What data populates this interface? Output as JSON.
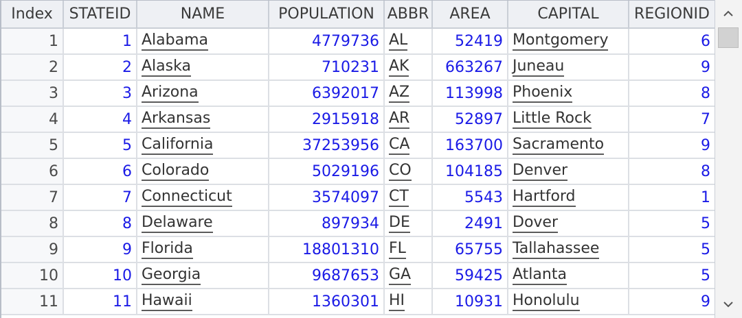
{
  "table": {
    "columns": [
      "Index",
      "STATEID",
      "NAME",
      "POPULATION",
      "ABBR",
      "AREA",
      "CAPITAL",
      "REGIONID"
    ],
    "rows": [
      [
        "1",
        "1",
        "Alabama",
        "4779736",
        "AL",
        "52419",
        "Montgomery",
        "6"
      ],
      [
        "2",
        "2",
        "Alaska",
        "710231",
        "AK",
        "663267",
        "Juneau",
        "9"
      ],
      [
        "3",
        "3",
        "Arizona",
        "6392017",
        "AZ",
        "113998",
        "Phoenix",
        "8"
      ],
      [
        "4",
        "4",
        "Arkansas",
        "2915918",
        "AR",
        "52897",
        "Little Rock",
        "7"
      ],
      [
        "5",
        "5",
        "California",
        "37253956",
        "CA",
        "163700",
        "Sacramento",
        "9"
      ],
      [
        "6",
        "6",
        "Colorado",
        "5029196",
        "CO",
        "104185",
        "Denver",
        "8"
      ],
      [
        "7",
        "7",
        "Connecticut",
        "3574097",
        "CT",
        "5543",
        "Hartford",
        "1"
      ],
      [
        "8",
        "8",
        "Delaware",
        "897934",
        "DE",
        "2491",
        "Dover",
        "5"
      ],
      [
        "9",
        "9",
        "Florida",
        "18801310",
        "FL",
        "65755",
        "Tallahassee",
        "5"
      ],
      [
        "10",
        "10",
        "Georgia",
        "9687653",
        "GA",
        "59425",
        "Atlanta",
        "5"
      ],
      [
        "11",
        "11",
        "Hawaii",
        "1360301",
        "HI",
        "10931",
        "Honolulu",
        "9"
      ]
    ]
  },
  "scrollbar": {
    "up_icon": "chevron-up-icon",
    "down_icon": "chevron-down-icon",
    "position_fraction": 0.0
  },
  "colors": {
    "number_text": "#1a1ae6",
    "text": "#333333",
    "header_bg": "#eef0f4"
  }
}
